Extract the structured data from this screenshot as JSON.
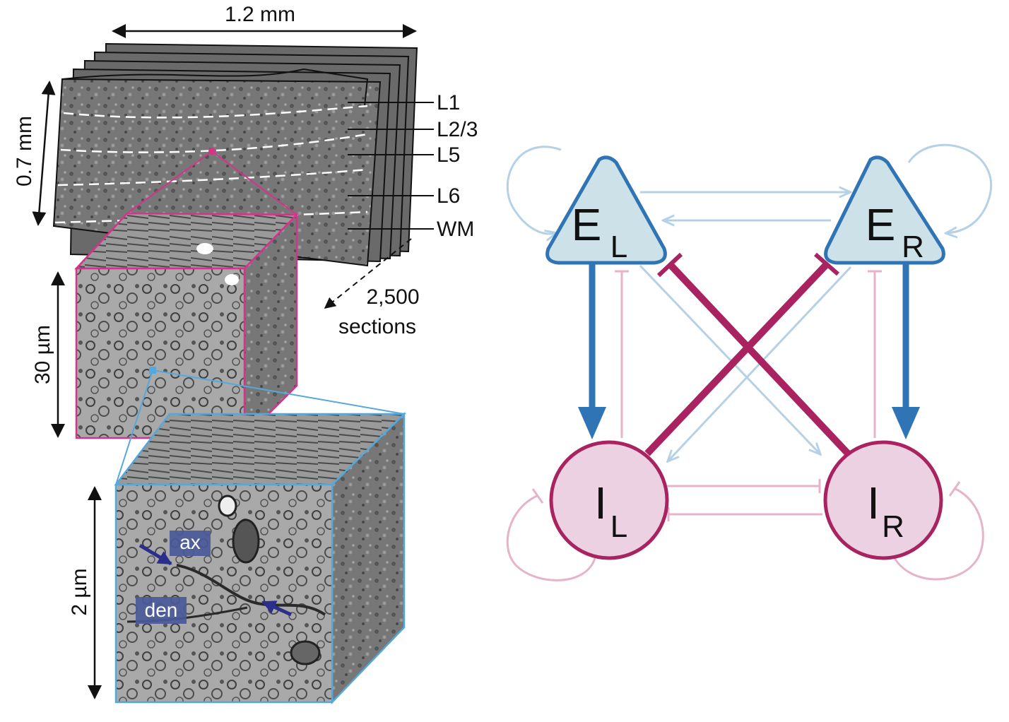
{
  "dimensions": {
    "width": "1.2 mm",
    "height": "0.7 mm",
    "depth_count": "2,500",
    "depth_word": "sections",
    "mid_cube": "30 µm",
    "small_cube": "2 µm"
  },
  "layers": [
    "L1",
    "L2/3",
    "L5",
    "L6",
    "WM"
  ],
  "em_labels": {
    "axon": "ax",
    "dendrite": "den"
  },
  "network": {
    "nodes": [
      {
        "id": "EL",
        "letter": "E",
        "sub": "L",
        "kind": "excitatory"
      },
      {
        "id": "ER",
        "letter": "E",
        "sub": "R",
        "kind": "excitatory"
      },
      {
        "id": "IL",
        "letter": "I",
        "sub": "L",
        "kind": "inhibitory"
      },
      {
        "id": "IR",
        "letter": "I",
        "sub": "R",
        "kind": "inhibitory"
      }
    ],
    "edges": [
      {
        "from": "EL",
        "to": "EL",
        "type": "excitatory",
        "strength": "weak"
      },
      {
        "from": "ER",
        "to": "ER",
        "type": "excitatory",
        "strength": "weak"
      },
      {
        "from": "EL",
        "to": "ER",
        "type": "excitatory",
        "strength": "weak"
      },
      {
        "from": "ER",
        "to": "EL",
        "type": "excitatory",
        "strength": "weak"
      },
      {
        "from": "EL",
        "to": "IL",
        "type": "excitatory",
        "strength": "strong"
      },
      {
        "from": "ER",
        "to": "IR",
        "type": "excitatory",
        "strength": "strong"
      },
      {
        "from": "EL",
        "to": "IR",
        "type": "excitatory",
        "strength": "weak"
      },
      {
        "from": "ER",
        "to": "IL",
        "type": "excitatory",
        "strength": "weak"
      },
      {
        "from": "IL",
        "to": "EL",
        "type": "inhibitory",
        "strength": "weak"
      },
      {
        "from": "IR",
        "to": "ER",
        "type": "inhibitory",
        "strength": "weak"
      },
      {
        "from": "IL",
        "to": "ER",
        "type": "inhibitory",
        "strength": "strong"
      },
      {
        "from": "IR",
        "to": "EL",
        "type": "inhibitory",
        "strength": "strong"
      },
      {
        "from": "IL",
        "to": "IR",
        "type": "inhibitory",
        "strength": "weak"
      },
      {
        "from": "IR",
        "to": "IL",
        "type": "inhibitory",
        "strength": "weak"
      },
      {
        "from": "IL",
        "to": "IL",
        "type": "inhibitory",
        "strength": "weak"
      },
      {
        "from": "IR",
        "to": "IR",
        "type": "inhibitory",
        "strength": "weak"
      }
    ]
  },
  "colors": {
    "excitatory_strong": "#2f74b5",
    "excitatory_weak": "#b5d1e6",
    "excitatory_fill": "#cde1e8",
    "inhibitory_strong": "#a8235f",
    "inhibitory_weak": "#e6b3cb",
    "inhibitory_fill": "#ecd1e2",
    "mid_cube_outline": "#d6338a",
    "small_cube_outline": "#55a8db",
    "em_label_bg": "#4a5a9a"
  }
}
